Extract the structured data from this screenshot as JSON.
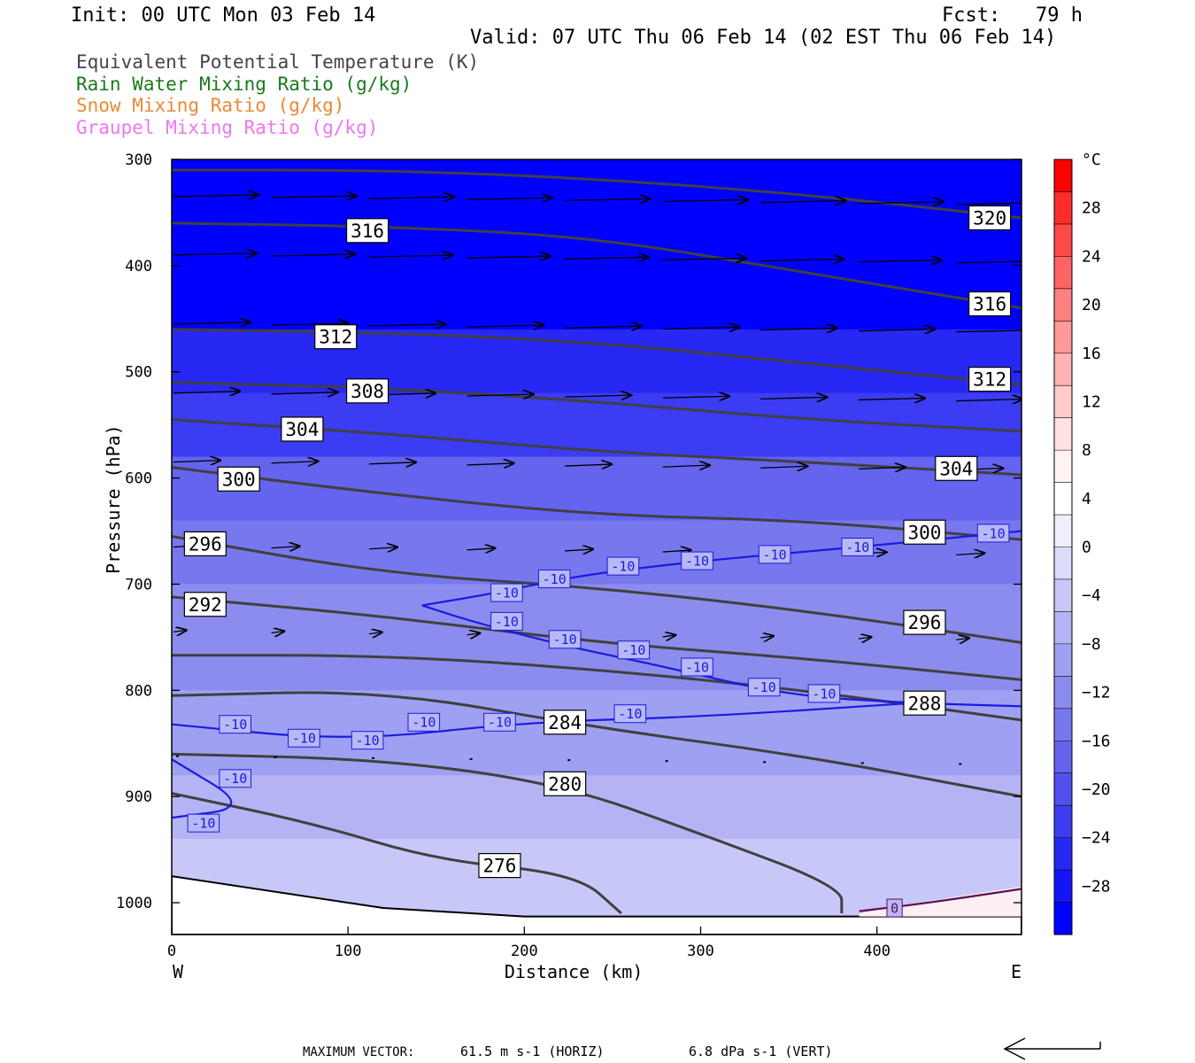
{
  "header": {
    "init": "Init: 00 UTC Mon 03 Feb 14",
    "fcst": "Fcst:   79 h",
    "valid": "Valid: 07 UTC Thu 06 Feb 14 (02 EST Thu 06 Feb 14)"
  },
  "legend": [
    {
      "label": "Equivalent Potential Temperature (K)",
      "color": "#444444"
    },
    {
      "label": "Rain Water Mixing Ratio (g/kg)",
      "color": "#1a7a1a"
    },
    {
      "label": "Snow Mixing Ratio (g/kg)",
      "color": "#ee8833"
    },
    {
      "label": "Graupel Mixing Ratio (g/kg)",
      "color": "#ee77ee"
    }
  ],
  "chart_data": {
    "type": "cross-section",
    "xlabel": "Distance (km)",
    "ylabel": "Pressure (hPa)",
    "xlim": [
      0,
      482
    ],
    "ylim": [
      1030,
      300
    ],
    "y_scale": "linear",
    "x_ticks": [
      "0",
      "100",
      "200",
      "300",
      "400"
    ],
    "y_ticks": [
      "300",
      "400",
      "500",
      "600",
      "700",
      "800",
      "900",
      "1000"
    ],
    "x_tick_values": [
      0,
      100,
      200,
      300,
      400
    ],
    "y_tick_values": [
      300,
      400,
      500,
      600,
      700,
      800,
      900,
      1000
    ],
    "left_end_label": "W",
    "right_end_label": "E",
    "colorbar": {
      "unit": "°C",
      "labels": [
        "28",
        "24",
        "20",
        "16",
        "12",
        "8",
        "4",
        "0",
        "−4",
        "−8",
        "−12",
        "−16",
        "−20",
        "−24",
        "−28"
      ],
      "label_values": [
        28,
        24,
        20,
        16,
        12,
        8,
        4,
        0,
        -4,
        -8,
        -12,
        -16,
        -20,
        -24,
        -28
      ],
      "range": [
        -32,
        32
      ],
      "colors": [
        "#0000ff",
        "#1414f8",
        "#2828f5",
        "#3c3cf2",
        "#5050ee",
        "#6464ee",
        "#7878ee",
        "#8c8cee",
        "#a0a0f2",
        "#b4b4f4",
        "#c8c8f8",
        "#dcdcfb",
        "#eeeefd",
        "#ffffff",
        "#fff2f2",
        "#ffe2e2",
        "#ffcccc",
        "#ffb4b4",
        "#ff9a9a",
        "#ff8080",
        "#ff6464",
        "#ff4848",
        "#ff2c2c",
        "#ff0000"
      ],
      "color_range": [
        -30,
        30
      ]
    },
    "temperature_bands": [
      {
        "p": 300,
        "t": -30
      },
      {
        "p": 410,
        "t": -29
      },
      {
        "p": 460,
        "t": -25
      },
      {
        "p": 520,
        "t": -21
      },
      {
        "p": 580,
        "t": -17
      },
      {
        "p": 640,
        "t": -13
      },
      {
        "p": 700,
        "t": -11
      },
      {
        "p": 800,
        "t": -9
      },
      {
        "p": 880,
        "t": -7
      },
      {
        "p": 940,
        "t": -5
      },
      {
        "p": 990,
        "t": -3
      },
      {
        "p": 1030,
        "t": -1
      }
    ],
    "theta_e_contours": [
      {
        "label": "320",
        "points": [
          [
            0,
            310
          ],
          [
            120,
            310
          ],
          [
            240,
            318
          ],
          [
            360,
            333
          ],
          [
            482,
            355
          ]
        ],
        "label_at": [
          464,
          355
        ]
      },
      {
        "label": "316",
        "points": [
          [
            0,
            360
          ],
          [
            120,
            363
          ],
          [
            240,
            373
          ],
          [
            360,
            407
          ],
          [
            482,
            440
          ]
        ],
        "label_at": [
          111,
          367
        ],
        "label2_at": [
          464,
          436
        ]
      },
      {
        "label": "312",
        "points": [
          [
            0,
            460
          ],
          [
            120,
            463
          ],
          [
            240,
            472
          ],
          [
            360,
            492
          ],
          [
            482,
            512
          ]
        ],
        "label_at": [
          93,
          467
        ],
        "label2_at": [
          464,
          507
        ]
      },
      {
        "label": "308",
        "points": [
          [
            0,
            510
          ],
          [
            120,
            515
          ],
          [
            240,
            528
          ],
          [
            360,
            545
          ],
          [
            482,
            556
          ]
        ],
        "label_at": [
          111,
          518
        ]
      },
      {
        "label": "304",
        "points": [
          [
            0,
            545
          ],
          [
            120,
            558
          ],
          [
            240,
            575
          ],
          [
            360,
            585
          ],
          [
            482,
            597
          ]
        ],
        "label_at": [
          74,
          554
        ],
        "label2_at": [
          445,
          591
        ]
      },
      {
        "label": "300",
        "points": [
          [
            0,
            590
          ],
          [
            120,
            615
          ],
          [
            240,
            635
          ],
          [
            360,
            640
          ],
          [
            482,
            658
          ]
        ],
        "label_at": [
          38,
          601
        ],
        "label2_at": [
          427,
          651
        ]
      },
      {
        "label": "296",
        "points": [
          [
            0,
            655
          ],
          [
            120,
            690
          ],
          [
            240,
            703
          ],
          [
            360,
            725
          ],
          [
            482,
            755
          ]
        ],
        "label_at": [
          19,
          662
        ],
        "label2_at": [
          427,
          736
        ]
      },
      {
        "label": "292",
        "points": [
          [
            0,
            712
          ],
          [
            120,
            730
          ],
          [
            240,
            755
          ],
          [
            360,
            770
          ],
          [
            482,
            790
          ]
        ],
        "label_at": [
          19,
          719
        ]
      },
      {
        "label": "288",
        "points": [
          [
            0,
            767
          ],
          [
            120,
            767
          ],
          [
            240,
            780
          ],
          [
            360,
            800
          ],
          [
            482,
            828
          ]
        ],
        "label_at": [
          427,
          812
        ]
      },
      {
        "label": "284",
        "points": [
          [
            0,
            805
          ],
          [
            120,
            800
          ],
          [
            240,
            835
          ],
          [
            360,
            862
          ],
          [
            482,
            900
          ]
        ],
        "label_at": [
          223,
          830
        ]
      },
      {
        "label": "280",
        "points": [
          [
            0,
            860
          ],
          [
            120,
            865
          ],
          [
            220,
            888
          ],
          [
            300,
            935
          ],
          [
            380,
            985
          ],
          [
            380,
            1010
          ]
        ],
        "label_at": [
          223,
          888
        ]
      },
      {
        "label": "276",
        "points": [
          [
            0,
            897
          ],
          [
            80,
            925
          ],
          [
            150,
            960
          ],
          [
            230,
            973
          ],
          [
            255,
            1010
          ]
        ],
        "label_at": [
          186,
          965
        ]
      }
    ],
    "isotherm_minus10": {
      "label": "-10",
      "upper": [
        [
          142,
          720
        ],
        [
          185,
          708
        ],
        [
          230,
          692
        ],
        [
          300,
          678
        ],
        [
          390,
          665
        ],
        [
          482,
          650
        ]
      ],
      "lower": [
        [
          142,
          720
        ],
        [
          170,
          735
        ],
        [
          220,
          757
        ],
        [
          280,
          778
        ],
        [
          350,
          805
        ],
        [
          420,
          812
        ],
        [
          482,
          815
        ]
      ],
      "low_branch": [
        [
          0,
          832
        ],
        [
          100,
          848
        ],
        [
          200,
          830
        ],
        [
          300,
          825
        ],
        [
          420,
          812
        ]
      ],
      "west_branch": [
        [
          0,
          865
        ],
        [
          45,
          910
        ],
        [
          0,
          920
        ]
      ]
    },
    "isotherm_0": {
      "label": "0",
      "points": [
        [
          390,
          1008
        ],
        [
          430,
          1000
        ],
        [
          482,
          987
        ]
      ]
    },
    "max_vector": {
      "label": "MAXIMUM VECTOR:",
      "horiz": "61.5 m s-1 (HORIZ)",
      "vert": "6.8 dPa s-1 (VERT)"
    }
  }
}
